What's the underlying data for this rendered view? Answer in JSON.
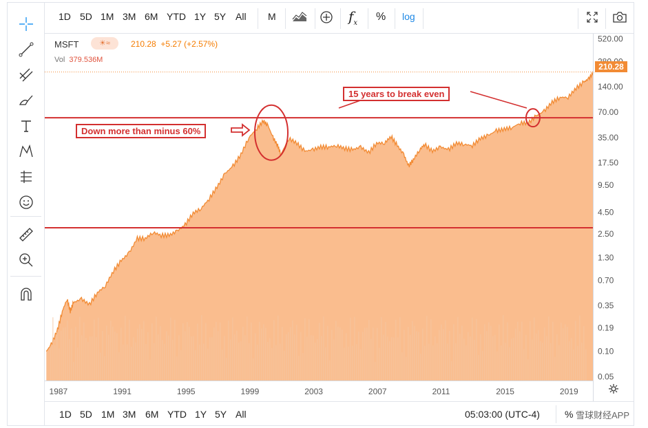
{
  "toolbar": {
    "intervals": [
      "1D",
      "5D",
      "1M",
      "3M",
      "6M",
      "YTD",
      "1Y",
      "5Y",
      "All"
    ],
    "interval_M": "M",
    "fx_label": "f",
    "percent_label": "%",
    "log_label": "log"
  },
  "bottombar": {
    "ranges": [
      "1D",
      "5D",
      "1M",
      "3M",
      "6M",
      "YTD",
      "1Y",
      "5Y",
      "All"
    ],
    "time": "05:03:00 (UTC-4)",
    "percent": "%",
    "watermark": "雪球财经APP"
  },
  "legend": {
    "symbol": "MSFT",
    "weather_icon": "☀≈",
    "price": "210.28",
    "change": "+5.27 (+2.57%)",
    "vol_label": "Vol",
    "vol_value": "379.536M"
  },
  "current_price_tag": "210.28",
  "chart_data": {
    "type": "area",
    "title": "MSFT",
    "scale": "log",
    "x_tick_labels": [
      "1987",
      "1991",
      "1995",
      "1999",
      "2003",
      "2007",
      "2011",
      "2015",
      "2019"
    ],
    "y_tick_labels": [
      "520.00",
      "280.00",
      "140.00",
      "70.00",
      "35.00",
      "17.50",
      "9.50",
      "4.50",
      "2.50",
      "1.30",
      "0.70",
      "0.35",
      "0.19",
      "0.10",
      "0.05"
    ],
    "ylim": [
      0.045,
      600
    ],
    "xlim": [
      1986.2,
      2020.6
    ],
    "series": [
      {
        "name": "MSFT price",
        "color": "#f6a15f",
        "points": [
          [
            1986.3,
            0.1
          ],
          [
            1986.6,
            0.12
          ],
          [
            1987.0,
            0.18
          ],
          [
            1987.3,
            0.3
          ],
          [
            1987.6,
            0.42
          ],
          [
            1987.8,
            0.3
          ],
          [
            1988.0,
            0.38
          ],
          [
            1988.5,
            0.42
          ],
          [
            1989.0,
            0.36
          ],
          [
            1989.5,
            0.5
          ],
          [
            1990.0,
            0.6
          ],
          [
            1990.5,
            0.9
          ],
          [
            1991.0,
            1.2
          ],
          [
            1991.5,
            1.5
          ],
          [
            1992.0,
            2.2
          ],
          [
            1992.5,
            2.2
          ],
          [
            1993.0,
            2.6
          ],
          [
            1993.5,
            2.4
          ],
          [
            1994.0,
            2.4
          ],
          [
            1994.5,
            2.7
          ],
          [
            1995.0,
            3.2
          ],
          [
            1995.5,
            4.4
          ],
          [
            1996.0,
            5.0
          ],
          [
            1996.5,
            6.5
          ],
          [
            1997.0,
            9.0
          ],
          [
            1997.5,
            13.0
          ],
          [
            1998.0,
            16.0
          ],
          [
            1998.5,
            22.0
          ],
          [
            1999.0,
            35.0
          ],
          [
            1999.5,
            45.0
          ],
          [
            1999.9,
            55.0
          ],
          [
            2000.2,
            48.0
          ],
          [
            2000.5,
            35.0
          ],
          [
            2000.8,
            28.0
          ],
          [
            2001.0,
            22.0
          ],
          [
            2001.5,
            34.0
          ],
          [
            2002.0,
            30.0
          ],
          [
            2002.5,
            24.0
          ],
          [
            2003.0,
            25.0
          ],
          [
            2003.5,
            27.0
          ],
          [
            2004.0,
            27.0
          ],
          [
            2004.5,
            28.0
          ],
          [
            2005.0,
            26.0
          ],
          [
            2005.5,
            25.0
          ],
          [
            2006.0,
            27.0
          ],
          [
            2006.5,
            23.0
          ],
          [
            2007.0,
            30.0
          ],
          [
            2007.5,
            30.0
          ],
          [
            2007.9,
            36.0
          ],
          [
            2008.3,
            28.0
          ],
          [
            2008.7,
            22.0
          ],
          [
            2009.0,
            16.0
          ],
          [
            2009.3,
            19.0
          ],
          [
            2009.7,
            25.0
          ],
          [
            2010.0,
            29.0
          ],
          [
            2010.5,
            24.0
          ],
          [
            2011.0,
            27.0
          ],
          [
            2011.5,
            25.0
          ],
          [
            2012.0,
            30.0
          ],
          [
            2012.5,
            29.0
          ],
          [
            2013.0,
            28.0
          ],
          [
            2013.5,
            34.0
          ],
          [
            2014.0,
            37.0
          ],
          [
            2014.5,
            42.0
          ],
          [
            2015.0,
            44.0
          ],
          [
            2015.5,
            46.0
          ],
          [
            2016.0,
            52.0
          ],
          [
            2016.5,
            52.0
          ],
          [
            2017.0,
            63.0
          ],
          [
            2017.5,
            72.0
          ],
          [
            2018.0,
            92.0
          ],
          [
            2018.5,
            105.0
          ],
          [
            2019.0,
            105.0
          ],
          [
            2019.5,
            135.0
          ],
          [
            2020.0,
            160.0
          ],
          [
            2020.3,
            175.0
          ],
          [
            2020.6,
            210.28
          ]
        ]
      }
    ],
    "horizontal_lines": [
      {
        "value": 60,
        "color": "#d32f2f"
      },
      {
        "value": 2.95,
        "color": "#d32f2f"
      }
    ],
    "annotations": [
      {
        "text": "15 years to break even",
        "color": "#d32f2f"
      },
      {
        "text": "Down more than minus 60%",
        "color": "#d32f2f"
      }
    ]
  }
}
